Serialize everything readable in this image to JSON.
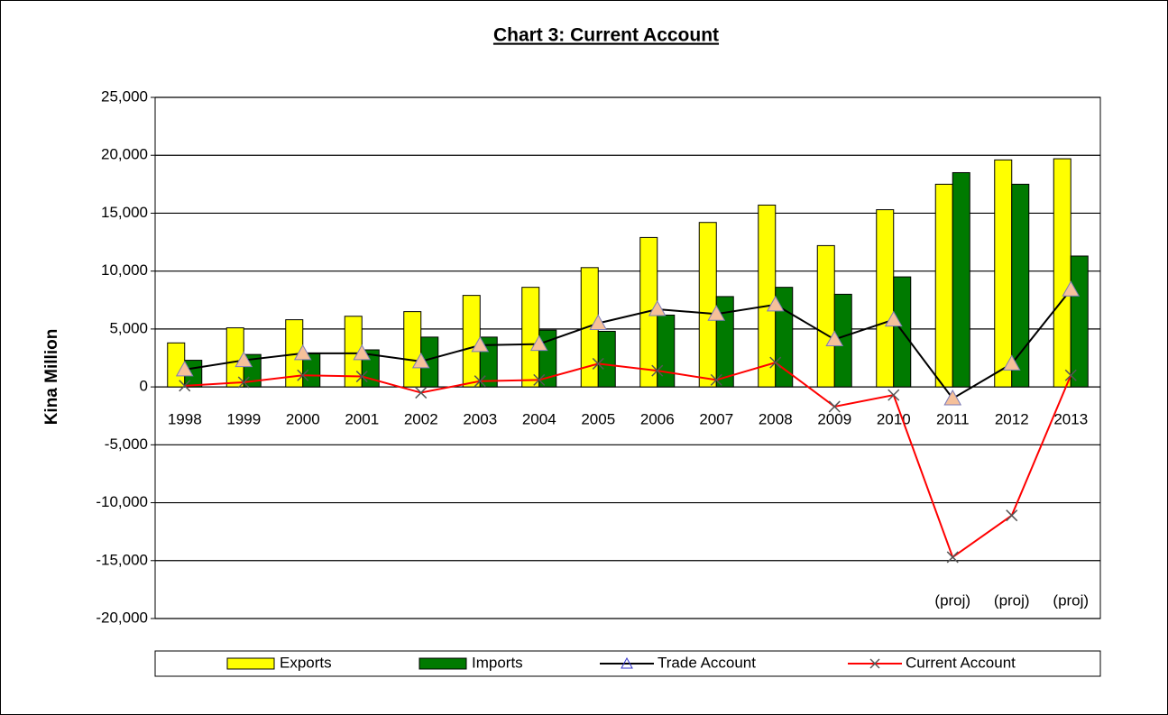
{
  "chart_data": {
    "type": "bar_line",
    "title": "Chart 3: Current Account",
    "y_label": "Kina Million",
    "categories": [
      "1998",
      "1999",
      "2000",
      "2001",
      "2002",
      "2003",
      "2004",
      "2005",
      "2006",
      "2007",
      "2008",
      "2009",
      "2010",
      "2011",
      "2012",
      "2013"
    ],
    "series": [
      {
        "name": "Exports",
        "type": "bar",
        "color": "#ffff00",
        "values": [
          3800,
          5100,
          5800,
          6100,
          6500,
          7900,
          8600,
          10300,
          12900,
          14200,
          15700,
          12200,
          15300,
          17500,
          19600,
          19700
        ]
      },
      {
        "name": "Imports",
        "type": "bar",
        "color": "#007a00",
        "values": [
          2300,
          2800,
          2900,
          3200,
          4300,
          4300,
          4900,
          4800,
          6200,
          7800,
          8600,
          8000,
          9500,
          18500,
          17500,
          11300
        ]
      },
      {
        "name": "Trade Account",
        "type": "line",
        "color": "#000000",
        "marker": "triangle",
        "values": [
          1500,
          2300,
          2900,
          2900,
          2200,
          3600,
          3700,
          5500,
          6700,
          6300,
          7100,
          4100,
          5800,
          -1000,
          2000,
          8400
        ]
      },
      {
        "name": "Current Account",
        "type": "line",
        "color": "#ff0000",
        "marker": "x",
        "values": [
          100,
          400,
          1000,
          900,
          -500,
          500,
          600,
          2000,
          1400,
          600,
          2100,
          -1700,
          -700,
          -14700,
          -11100,
          1000
        ]
      }
    ],
    "annotations": [
      {
        "text": "(proj)",
        "category": "2011"
      },
      {
        "text": "(proj)",
        "category": "2012"
      },
      {
        "text": "(proj)",
        "category": "2013"
      }
    ],
    "ylim": [
      -20000,
      25000
    ],
    "yticks": [
      {
        "value": -20000,
        "label": "-20,000"
      },
      {
        "value": -15000,
        "label": "-15,000"
      },
      {
        "value": -10000,
        "label": "-10,000"
      },
      {
        "value": -5000,
        "label": "-5,000"
      },
      0,
      {
        "value": 5000,
        "label": "5,000"
      },
      {
        "value": 10000,
        "label": "10,000"
      },
      {
        "value": 15000,
        "label": "15,000"
      },
      {
        "value": 20000,
        "label": "20,000"
      },
      {
        "value": 25000,
        "label": "25,000"
      }
    ],
    "grid": true,
    "legend": "bottom"
  }
}
